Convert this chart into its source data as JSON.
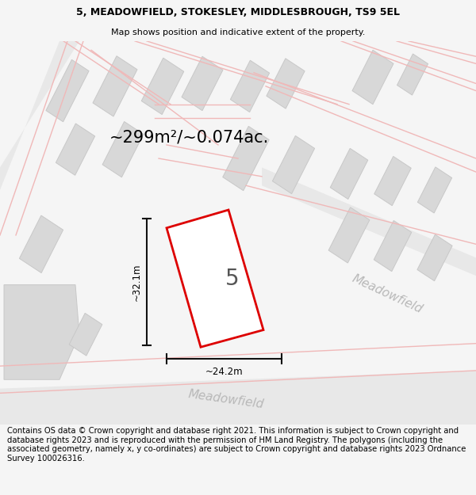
{
  "title_line1": "5, MEADOWFIELD, STOKESLEY, MIDDLESBROUGH, TS9 5EL",
  "title_line2": "Map shows position and indicative extent of the property.",
  "area_label": "~299m²/~0.074ac.",
  "width_label": "~24.2m",
  "height_label": "~32.1m",
  "property_number": "5",
  "road_label_bottom": "Meadowfield",
  "road_label_right": "Meadowfield",
  "footer_text": "Contains OS data © Crown copyright and database right 2021. This information is subject to Crown copyright and database rights 2023 and is reproduced with the permission of HM Land Registry. The polygons (including the associated geometry, namely x, y co-ordinates) are subject to Crown copyright and database rights 2023 Ordnance Survey 100026316.",
  "bg_color": "#f5f5f5",
  "bldg_fill": "#d8d8d8",
  "bldg_stroke": "#c8c8c8",
  "red_color": "#dd0000",
  "road_line_color": "#f0b8b8",
  "road_fill_color": "#ebebeb",
  "gray_label": "#b8b8b8",
  "title_fontsize": 9.0,
  "subtitle_fontsize": 8.0,
  "area_fontsize": 15,
  "label_fontsize": 8.5,
  "property_num_fontsize": 20,
  "road_fontsize": 11,
  "footer_fontsize": 7.2
}
